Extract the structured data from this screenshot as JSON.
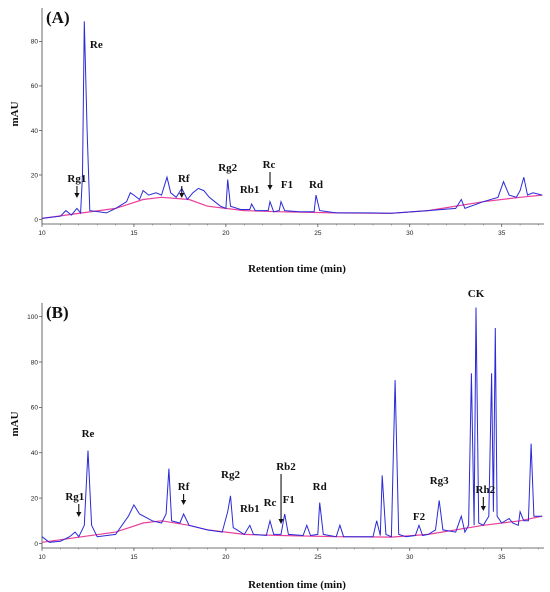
{
  "chart_data": [
    {
      "type": "line",
      "panel_label": "(A)",
      "xlabel": "Retention time (min)",
      "ylabel": "mAU",
      "xlim": [
        10,
        37.3
      ],
      "ylim": [
        -2,
        95
      ],
      "x_ticks": [
        10,
        15,
        20,
        25,
        30,
        35
      ],
      "y_ticks": [
        0,
        20,
        40,
        60,
        80
      ],
      "baseline_color": "#e8409a",
      "trace_color": "#2a2ad8",
      "baseline": [
        [
          10,
          0.5
        ],
        [
          14,
          5
        ],
        [
          15.5,
          9
        ],
        [
          16.5,
          10
        ],
        [
          18,
          9
        ],
        [
          19,
          6
        ],
        [
          21,
          4
        ],
        [
          23,
          3.5
        ],
        [
          26,
          3
        ],
        [
          29,
          2.8
        ],
        [
          31,
          4
        ],
        [
          34,
          8
        ],
        [
          36,
          10
        ],
        [
          37.2,
          11
        ]
      ],
      "trace": [
        [
          10,
          0.5
        ],
        [
          11,
          1.5
        ],
        [
          11.3,
          4
        ],
        [
          11.6,
          2
        ],
        [
          11.9,
          5
        ],
        [
          12.1,
          3
        ],
        [
          12.2,
          20
        ],
        [
          12.3,
          89
        ],
        [
          12.45,
          40
        ],
        [
          12.6,
          4
        ],
        [
          13.5,
          3
        ],
        [
          14,
          5
        ],
        [
          14.6,
          8
        ],
        [
          14.8,
          12
        ],
        [
          15,
          11
        ],
        [
          15.3,
          9
        ],
        [
          15.5,
          13
        ],
        [
          15.8,
          11
        ],
        [
          16.2,
          12
        ],
        [
          16.5,
          11
        ],
        [
          16.8,
          19
        ],
        [
          17,
          12
        ],
        [
          17.3,
          10
        ],
        [
          17.6,
          14
        ],
        [
          17.9,
          9
        ],
        [
          18.2,
          12
        ],
        [
          18.5,
          14
        ],
        [
          18.8,
          13
        ],
        [
          19.1,
          10
        ],
        [
          19.4,
          8
        ],
        [
          19.7,
          6
        ],
        [
          20,
          5
        ],
        [
          20.1,
          18
        ],
        [
          20.25,
          6
        ],
        [
          20.8,
          4.5
        ],
        [
          21.3,
          4.5
        ],
        [
          21.4,
          7
        ],
        [
          21.6,
          4
        ],
        [
          22.3,
          4
        ],
        [
          22.4,
          8
        ],
        [
          22.6,
          3.5
        ],
        [
          22.9,
          4
        ],
        [
          23,
          8
        ],
        [
          23.2,
          4
        ],
        [
          24,
          3.5
        ],
        [
          24.8,
          3.5
        ],
        [
          24.9,
          11
        ],
        [
          25.1,
          4
        ],
        [
          26,
          3
        ],
        [
          28,
          3
        ],
        [
          29,
          2.8
        ],
        [
          31,
          4
        ],
        [
          32.5,
          5
        ],
        [
          32.8,
          9
        ],
        [
          33,
          5
        ],
        [
          34,
          8
        ],
        [
          34.8,
          10
        ],
        [
          35.1,
          17
        ],
        [
          35.4,
          11
        ],
        [
          35.8,
          10
        ],
        [
          36,
          13
        ],
        [
          36.2,
          19
        ],
        [
          36.4,
          11
        ],
        [
          36.7,
          12
        ],
        [
          37.2,
          11
        ]
      ],
      "peaks": [
        {
          "label": "Re",
          "x": 12.3
        },
        {
          "label": "Rg1",
          "x": 11.9
        },
        {
          "label": "Rf",
          "x": 17.6
        },
        {
          "label": "Rg2",
          "x": 20.1
        },
        {
          "label": "Rb1",
          "x": 21.4
        },
        {
          "label": "Rc",
          "x": 22.4
        },
        {
          "label": "F1",
          "x": 23.0
        },
        {
          "label": "Rd",
          "x": 24.9
        }
      ]
    },
    {
      "type": "line",
      "panel_label": "(B)",
      "xlabel": "Retention time (min)",
      "ylabel": "mAU",
      "xlim": [
        10,
        37.3
      ],
      "ylim": [
        -2,
        106
      ],
      "x_ticks": [
        10,
        15,
        20,
        25,
        30,
        35
      ],
      "y_ticks": [
        0,
        20,
        40,
        60,
        80,
        100
      ],
      "baseline_color": "#e8409a",
      "trace_color": "#2a2ad8",
      "baseline": [
        [
          10,
          0.5
        ],
        [
          14,
          5
        ],
        [
          15.5,
          9
        ],
        [
          16.5,
          10
        ],
        [
          18,
          8
        ],
        [
          19,
          6
        ],
        [
          21,
          4
        ],
        [
          23,
          3.5
        ],
        [
          26,
          3
        ],
        [
          29,
          2.8
        ],
        [
          31,
          4
        ],
        [
          34,
          8
        ],
        [
          36,
          10
        ],
        [
          37.2,
          12
        ]
      ],
      "trace": [
        [
          10,
          3
        ],
        [
          10.4,
          0.5
        ],
        [
          11,
          1
        ],
        [
          11.5,
          3
        ],
        [
          11.8,
          5
        ],
        [
          12,
          3
        ],
        [
          12.3,
          8
        ],
        [
          12.5,
          41
        ],
        [
          12.7,
          8
        ],
        [
          13,
          3
        ],
        [
          14,
          4
        ],
        [
          14.7,
          12
        ],
        [
          15,
          17
        ],
        [
          15.3,
          13
        ],
        [
          16,
          10
        ],
        [
          16.5,
          9
        ],
        [
          16.75,
          13
        ],
        [
          16.9,
          33
        ],
        [
          17.05,
          10
        ],
        [
          17.5,
          9
        ],
        [
          17.7,
          13
        ],
        [
          18,
          8
        ],
        [
          19,
          6
        ],
        [
          19.8,
          5
        ],
        [
          20.1,
          14
        ],
        [
          20.25,
          21
        ],
        [
          20.4,
          7
        ],
        [
          21,
          4
        ],
        [
          21.3,
          8
        ],
        [
          21.5,
          4
        ],
        [
          22.2,
          3.5
        ],
        [
          22.4,
          10
        ],
        [
          22.6,
          4
        ],
        [
          23,
          4
        ],
        [
          23.2,
          13
        ],
        [
          23.4,
          4
        ],
        [
          24.2,
          3.5
        ],
        [
          24.4,
          8
        ],
        [
          24.6,
          3.5
        ],
        [
          25,
          4
        ],
        [
          25.1,
          18
        ],
        [
          25.3,
          4
        ],
        [
          26,
          3
        ],
        [
          26.2,
          8
        ],
        [
          26.4,
          3
        ],
        [
          27.5,
          3
        ],
        [
          28,
          3
        ],
        [
          28.2,
          10
        ],
        [
          28.4,
          3.5
        ],
        [
          28.5,
          30
        ],
        [
          28.7,
          4
        ],
        [
          29,
          3
        ],
        [
          29.2,
          72
        ],
        [
          29.4,
          4
        ],
        [
          29.8,
          3
        ],
        [
          30.3,
          3.5
        ],
        [
          30.5,
          8
        ],
        [
          30.7,
          3.5
        ],
        [
          31,
          4
        ],
        [
          31.4,
          6
        ],
        [
          31.6,
          19
        ],
        [
          31.8,
          6
        ],
        [
          32.5,
          5
        ],
        [
          32.8,
          12
        ],
        [
          33,
          5
        ],
        [
          33.2,
          8
        ],
        [
          33.35,
          75
        ],
        [
          33.5,
          8
        ],
        [
          33.6,
          104
        ],
        [
          33.75,
          9
        ],
        [
          34,
          8
        ],
        [
          34.3,
          12
        ],
        [
          34.45,
          75
        ],
        [
          34.55,
          14
        ],
        [
          34.65,
          95
        ],
        [
          34.75,
          12
        ],
        [
          35,
          9
        ],
        [
          35.4,
          11
        ],
        [
          35.6,
          9
        ],
        [
          35.9,
          8
        ],
        [
          36,
          14
        ],
        [
          36.2,
          10
        ],
        [
          36.45,
          10
        ],
        [
          36.6,
          44
        ],
        [
          36.75,
          12
        ],
        [
          37.2,
          12
        ]
      ],
      "peaks": [
        {
          "label": "Re",
          "x": 12.5
        },
        {
          "label": "Rg1",
          "x": 12.0
        },
        {
          "label": "Rf",
          "x": 17.7
        },
        {
          "label": "Rg2",
          "x": 20.25
        },
        {
          "label": "Rb1",
          "x": 21.3
        },
        {
          "label": "Rc",
          "x": 22.4
        },
        {
          "label": "Rb2",
          "x": 23.0
        },
        {
          "label": "F1",
          "x": 23.2
        },
        {
          "label": "Rd",
          "x": 25.1
        },
        {
          "label": "F2",
          "x": 30.5
        },
        {
          "label": "Rg3",
          "x": 31.6
        },
        {
          "label": "CK",
          "x": 33.6
        },
        {
          "label": "Rh2",
          "x": 34.0
        }
      ]
    }
  ]
}
